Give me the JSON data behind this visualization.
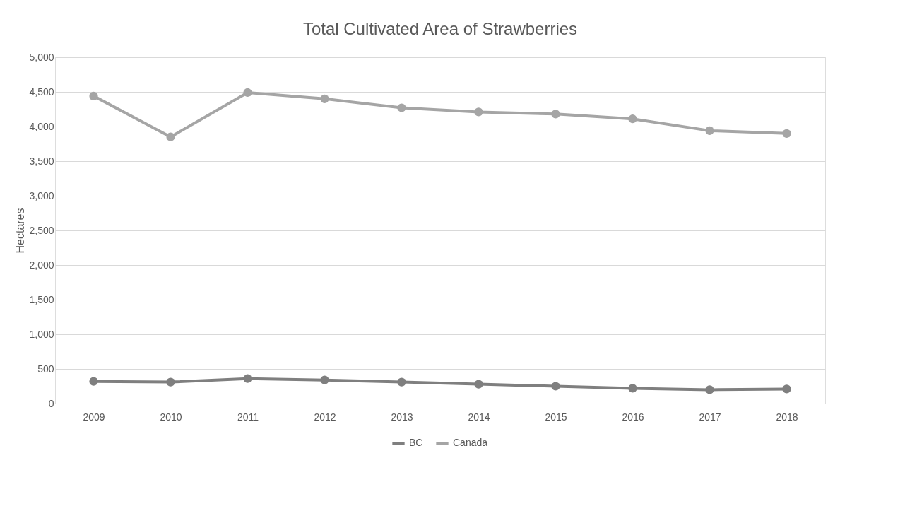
{
  "chart_data": {
    "type": "line",
    "title": "Total Cultivated Area of Strawberries",
    "ylabel": "Hectares",
    "categories": [
      "2009",
      "2010",
      "2011",
      "2012",
      "2013",
      "2014",
      "2015",
      "2016",
      "2017",
      "2018"
    ],
    "series": [
      {
        "name": "BC",
        "color": "#7f7f7f",
        "values": [
          320,
          310,
          360,
          340,
          310,
          280,
          250,
          220,
          200,
          210
        ]
      },
      {
        "name": "Canada",
        "color": "#a5a5a5",
        "values": [
          4440,
          3850,
          4490,
          4400,
          4270,
          4210,
          4180,
          4110,
          3940,
          3900
        ]
      }
    ],
    "ylim": [
      0,
      5000
    ],
    "yticks": [
      {
        "value": 0,
        "label": "0"
      },
      {
        "value": 500,
        "label": "500"
      },
      {
        "value": 1000,
        "label": "1,000"
      },
      {
        "value": 1500,
        "label": "1,500"
      },
      {
        "value": 2000,
        "label": "2,000"
      },
      {
        "value": 2500,
        "label": "2,500"
      },
      {
        "value": 3000,
        "label": "3,000"
      },
      {
        "value": 3500,
        "label": "3,500"
      },
      {
        "value": 4000,
        "label": "4,000"
      },
      {
        "value": 4500,
        "label": "4,500"
      },
      {
        "value": 5000,
        "label": "5,000"
      }
    ],
    "grid": "y",
    "legend": "bottom",
    "marker": "circle",
    "line_style": "solid"
  }
}
